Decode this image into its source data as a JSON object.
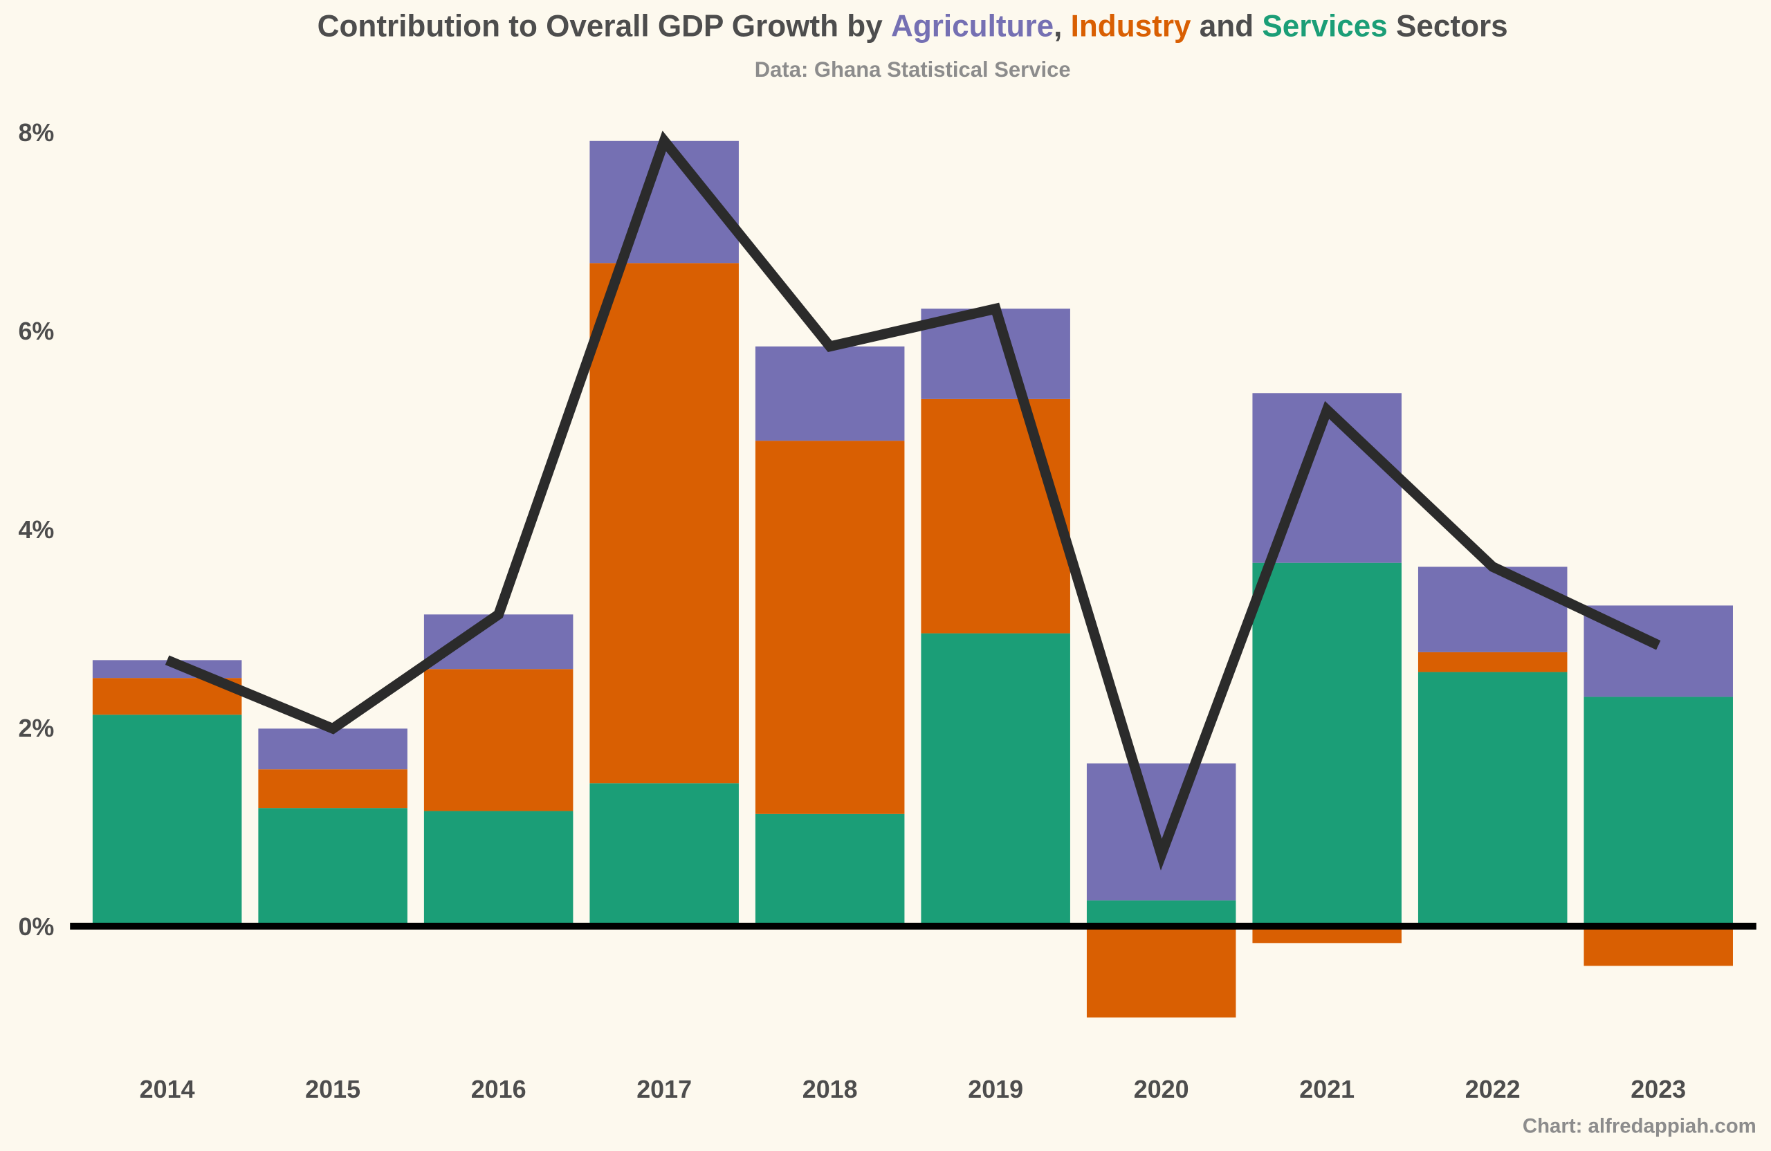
{
  "colors": {
    "background": "#fdf9ee",
    "agriculture": "#7570b3",
    "industry": "#d95f02",
    "services": "#1b9e77",
    "total_line": "#2b2b2b",
    "text": "#4d4d4d",
    "subtext": "#8c8c8c"
  },
  "chart_data": {
    "type": "bar",
    "stacked": true,
    "title_parts": [
      "Contribution to Overall GDP Growth by ",
      "Agriculture",
      ", ",
      "Industry",
      " and ",
      "Services",
      " Sectors"
    ],
    "subtitle": "Data: Ghana Statistical Service",
    "caption": "Chart: alfredappiah.com",
    "categories": [
      "2014",
      "2015",
      "2016",
      "2017",
      "2018",
      "2019",
      "2020",
      "2021",
      "2022",
      "2023"
    ],
    "series": [
      {
        "name": "Services",
        "values": [
          2.13,
          1.19,
          1.16,
          1.44,
          1.13,
          2.95,
          0.26,
          3.66,
          2.56,
          2.31
        ]
      },
      {
        "name": "Industry",
        "values": [
          0.37,
          0.39,
          1.43,
          5.24,
          3.76,
          2.36,
          -0.92,
          -0.17,
          0.2,
          -0.4
        ]
      },
      {
        "name": "Agriculture",
        "values": [
          0.18,
          0.41,
          0.55,
          1.23,
          0.95,
          0.91,
          1.38,
          1.71,
          0.86,
          0.92
        ]
      }
    ],
    "total_growth": [
      2.68,
      1.99,
      3.14,
      7.91,
      5.84,
      6.22,
      0.72,
      5.2,
      3.62,
      2.83
    ],
    "y_ticks": [
      "0%",
      "2%",
      "4%",
      "6%",
      "8%"
    ],
    "y_tick_values": [
      0,
      2,
      4,
      6,
      8
    ],
    "ylim": [
      -1.2,
      8.4
    ],
    "grid": false,
    "legend": "in title"
  }
}
